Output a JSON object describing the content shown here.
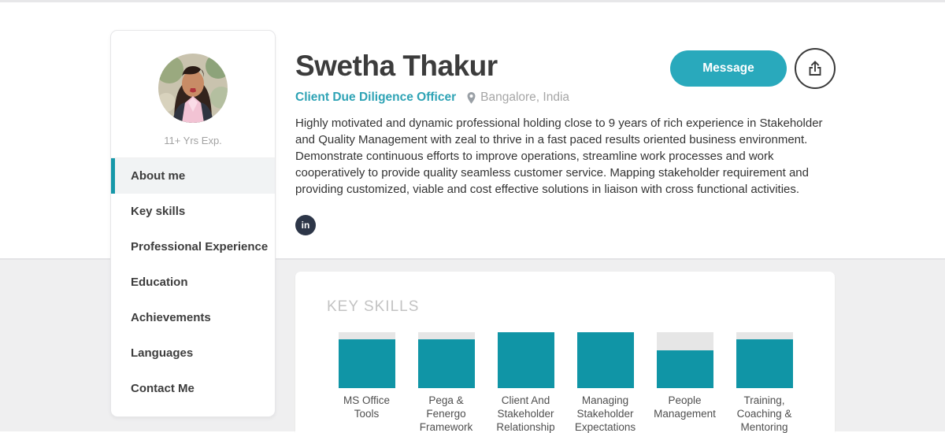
{
  "sidebar": {
    "experience_label": "11+ Yrs Exp.",
    "active_item": "About me",
    "nav_items": [
      "About me",
      "Key skills",
      "Professional Experience",
      "Education",
      "Achievements",
      "Languages",
      "Contact Me"
    ]
  },
  "header": {
    "name": "Swetha Thakur",
    "job_title": "Client Due Diligence Officer",
    "location": "Bangalore, India",
    "about_text": "Highly motivated and dynamic professional holding close to 9 years of rich experience in Stakeholder and Quality Management with zeal to thrive in a fast paced results oriented business environment. Demonstrate continuous efforts to improve operations, streamline work processes and work cooperatively to provide quality seamless customer service. Mapping stakeholder requirement and providing customized, viable and cost effective solutions in liaison with cross functional activities.",
    "message_button_label": "Message",
    "linkedin_label": "in"
  },
  "key_skills": {
    "heading": "KEY SKILLS",
    "chart_data": {
      "type": "bar",
      "title": "KEY SKILLS",
      "categories": [
        "MS Office Tools",
        "Pega & Fenergo Framework",
        "Client And Stakeholder Relationship",
        "Managing Stakeholder Expectations",
        "People Management",
        "Training, Coaching & Mentoring"
      ],
      "values": [
        88,
        88,
        100,
        100,
        68,
        88
      ],
      "ylim": [
        0,
        100
      ],
      "unit": "percent filled (estimated from bar fill)",
      "orientation": "vertical",
      "bar_color": "#1095a6",
      "track_color": "#e6e6e6"
    }
  },
  "colors": {
    "accent_teal_button": "#29a9bc",
    "accent_teal_title": "#2ea3b5",
    "bar_fill_teal": "#1095a6",
    "active_nav_indicator": "#1798a9",
    "active_nav_bg": "#f1f3f4",
    "bottom_background": "#efeff0",
    "linkedin_badge_bg": "#2d3648"
  }
}
